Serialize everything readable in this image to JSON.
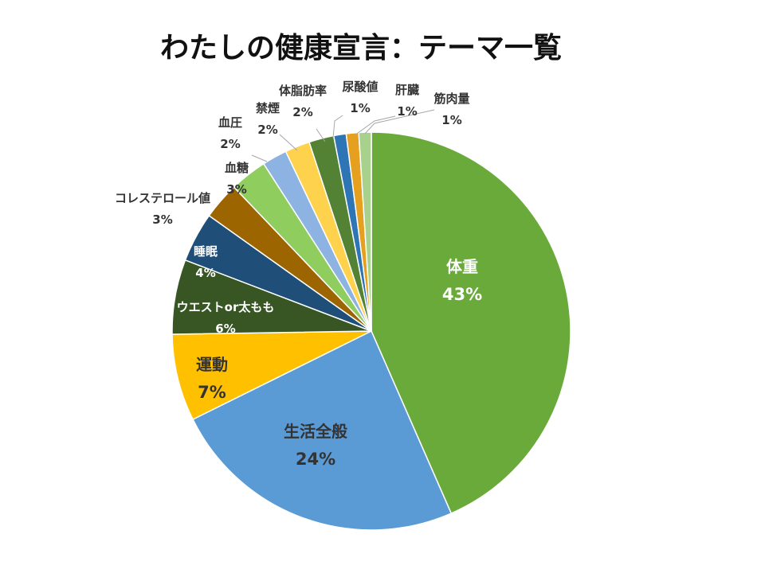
{
  "chart_data": {
    "type": "pie",
    "title": "わたしの健康宣言：テーマ一覧",
    "slices": [
      {
        "label": "体重",
        "value": 43,
        "value_label": "43%",
        "color": "#6aaa3a"
      },
      {
        "label": "生活全般",
        "value": 24,
        "value_label": "24%",
        "color": "#5b9bd5"
      },
      {
        "label": "運動",
        "value": 7,
        "value_label": "7%",
        "color": "#ffc000"
      },
      {
        "label": "ウエストor太もも",
        "value": 6,
        "value_label": "6%",
        "color": "#375623"
      },
      {
        "label": "睡眠",
        "value": 4,
        "value_label": "4%",
        "color": "#1f4e79"
      },
      {
        "label": "コレステロール値",
        "value": 3,
        "value_label": "3%",
        "color": "#9c6500"
      },
      {
        "label": "血糖",
        "value": 3,
        "value_label": "3%",
        "color": "#8fce5e"
      },
      {
        "label": "血圧",
        "value": 2,
        "value_label": "2%",
        "color": "#8db3e2"
      },
      {
        "label": "禁煙",
        "value": 2,
        "value_label": "2%",
        "color": "#ffd24d"
      },
      {
        "label": "体脂肪率",
        "value": 2,
        "value_label": "2%",
        "color": "#548235"
      },
      {
        "label": "尿酸値",
        "value": 1,
        "value_label": "1%",
        "color": "#2e75b6"
      },
      {
        "label": "肝臓",
        "value": 1,
        "value_label": "1%",
        "color": "#e6a020"
      },
      {
        "label": "筋肉量",
        "value": 1,
        "value_label": "1%",
        "color": "#a9d18e"
      }
    ]
  }
}
